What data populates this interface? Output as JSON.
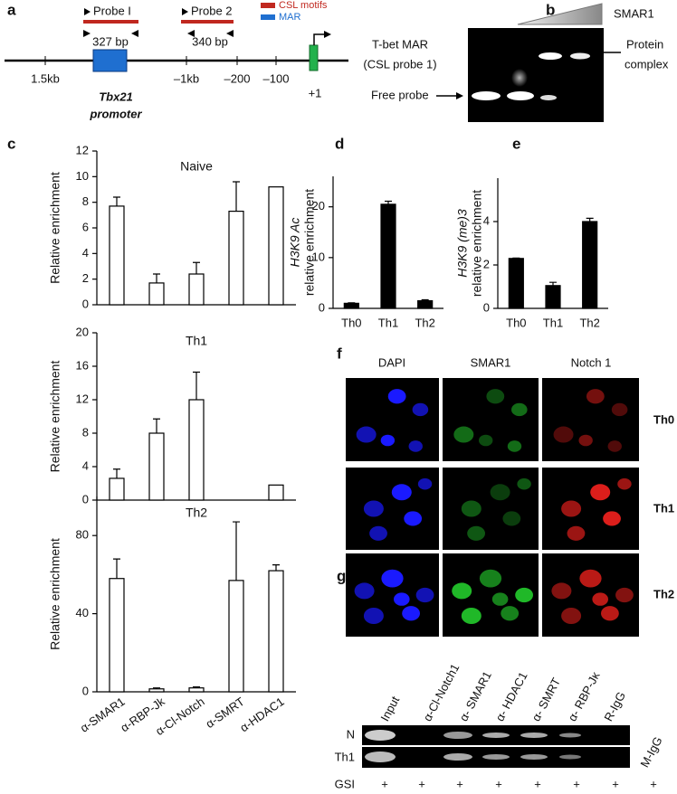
{
  "panel_labels": [
    "a",
    "b",
    "c",
    "d",
    "e",
    "f",
    "g"
  ],
  "diagram_a": {
    "probes": [
      "Probe I",
      "Probe 2"
    ],
    "legend": [
      "CSL motifs",
      "MAR"
    ],
    "sizes": [
      "327 bp",
      "340 bp"
    ],
    "positions": [
      "1.5kb",
      "–1kb",
      "–200",
      "–100",
      "+1"
    ],
    "gene": "Tbx21",
    "gene_note": "promoter"
  },
  "gel_b": {
    "titration": "SMAR1",
    "probe": [
      "T-bet MAR",
      "(CSL probe 1)"
    ],
    "free": "Free probe",
    "complex": [
      "Protein",
      "complex"
    ]
  },
  "chart_data": [
    {
      "type": "bar",
      "title": "Naive",
      "ylabel": [
        "Relative enrichment"
      ],
      "categories": [
        null,
        null,
        null,
        null,
        null
      ],
      "values": [
        7.7,
        1.7,
        2.4,
        7.3,
        9.2
      ],
      "errors": [
        0.7,
        0.7,
        0.9,
        2.3,
        null
      ],
      "color": "#ffffff",
      "ylim": [
        0,
        12
      ],
      "yticks": [
        0,
        2,
        4,
        6,
        8,
        10,
        12
      ]
    },
    {
      "type": "bar",
      "title": "Th1",
      "ylabel": [
        "Relative enrichment"
      ],
      "categories": [
        null,
        null,
        null,
        null,
        null
      ],
      "values": [
        2.6,
        8,
        12,
        0,
        1.8
      ],
      "errors": [
        1.1,
        1.7,
        3.3,
        null,
        null
      ],
      "color": "#ffffff",
      "ylim": [
        0,
        20
      ],
      "yticks": [
        0,
        4,
        8,
        12,
        16,
        20
      ]
    },
    {
      "type": "bar",
      "title": "Th2",
      "ylabel": [
        "Relative enrichment"
      ],
      "categories": [
        "α-SMAR1",
        "α-RBP-Jk",
        "α-Cl-Notch",
        "α-SMRT",
        "α-HDAC1"
      ],
      "values": [
        58,
        1.5,
        2,
        57,
        62
      ],
      "errors": [
        10,
        0.5,
        0.5,
        30,
        3
      ],
      "color": "#ffffff",
      "ylim": [
        0,
        100
      ],
      "yticks": [
        0,
        40,
        80
      ]
    },
    {
      "type": "bar",
      "ylabel": [
        "H3K9 Ac",
        "relative enrichment"
      ],
      "categories": [
        "Th0",
        "Th1",
        "Th2"
      ],
      "values": [
        1,
        20.5,
        1.5
      ],
      "errors": [
        0.1,
        0.6,
        0.2
      ],
      "color": "#000000",
      "ylim": [
        0,
        26
      ],
      "yticks": [
        0,
        10,
        20
      ]
    },
    {
      "type": "bar",
      "ylabel": [
        "H3K9 (me)3",
        "relative enrichment"
      ],
      "categories": [
        "Th0",
        "Th1",
        "Th2"
      ],
      "values": [
        2.3,
        1.05,
        4.0
      ],
      "errors": [
        0.02,
        0.15,
        0.15
      ],
      "color": "#000000",
      "ylim": [
        0,
        6
      ],
      "yticks": [
        0,
        2,
        4
      ]
    }
  ],
  "micrographs_f": {
    "columns": [
      "DAPI",
      "SMAR1",
      "Notch 1"
    ],
    "rows": [
      "Th0",
      "Th1",
      "Th2"
    ]
  },
  "gel_g": {
    "lanes": [
      "Input",
      "α-Cl-Notch1",
      "α- SMAR1",
      "α- HDAC1",
      "α- SMRT",
      "α- RBP-Jκ",
      "R-IgG",
      "M-IgG"
    ],
    "rows": [
      "N",
      "Th1"
    ],
    "treatment": "GSI",
    "treatment_marks": [
      "+",
      "+",
      "+",
      "+",
      "+",
      "+",
      "+",
      "+"
    ]
  }
}
